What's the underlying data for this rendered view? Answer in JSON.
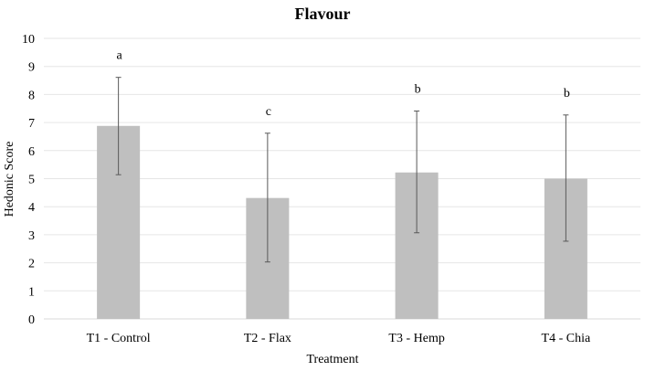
{
  "chart_data": {
    "type": "bar",
    "title": "Flavour",
    "xlabel": "Treatment",
    "ylabel": "Hedonic Score",
    "ylim": [
      0,
      10
    ],
    "yticks": [
      "0",
      "1",
      "2",
      "3",
      "4",
      "5",
      "6",
      "7",
      "8",
      "9",
      "10"
    ],
    "grid": true,
    "categories": [
      "T1 - Control",
      "T2 - Flax",
      "T3 - Hemp",
      "T4 - Chia"
    ],
    "values": [
      6.88,
      4.31,
      5.22,
      5.0
    ],
    "error_upper": [
      8.61,
      6.62,
      7.41,
      7.27
    ],
    "error_lower": [
      5.14,
      2.03,
      3.07,
      2.77
    ],
    "significance_letters": [
      "a",
      "c",
      "b",
      "b"
    ],
    "bar_color": "#bfbfbf",
    "grid_color": "#e6e6e6"
  }
}
